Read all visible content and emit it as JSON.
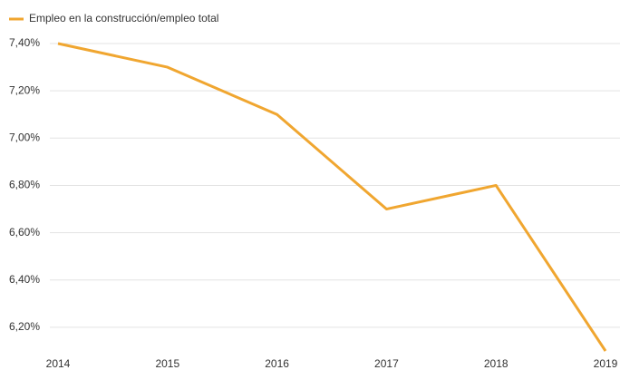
{
  "chart_data": {
    "type": "line",
    "categories": [
      "2014",
      "2015",
      "2016",
      "2017",
      "2018",
      "2019"
    ],
    "series": [
      {
        "name": "Empleo en la construcción/empleo total",
        "color": "#f0a630",
        "values": [
          7.4,
          7.3,
          7.1,
          6.7,
          6.8,
          6.1
        ]
      }
    ],
    "ylim": [
      6.1,
      7.4
    ],
    "yticks": [
      {
        "value": 6.2,
        "label": "6,20%"
      },
      {
        "value": 6.4,
        "label": "6,40%"
      },
      {
        "value": 6.6,
        "label": "6,60%"
      },
      {
        "value": 6.8,
        "label": "6,80%"
      },
      {
        "value": 7.0,
        "label": "7,00%"
      },
      {
        "value": 7.2,
        "label": "7,20%"
      },
      {
        "value": 7.4,
        "label": "7,40%"
      }
    ],
    "grid": true,
    "legend": "top-left"
  }
}
